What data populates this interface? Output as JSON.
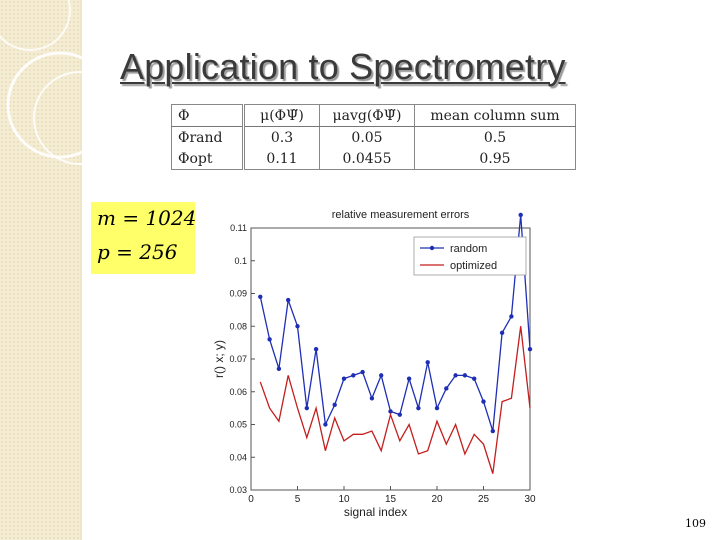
{
  "slide": {
    "title": "Application to Spectrometry",
    "page_number": "109"
  },
  "table": {
    "header": [
      "Φ",
      "μ(ΦΨ̃)",
      "μavg(ΦΨ̃)",
      "mean column sum"
    ],
    "rows": [
      [
        "Φrand",
        "0.3",
        "0.05",
        "0.5"
      ],
      [
        "Φopt",
        "0.11",
        "0.0455",
        "0.95"
      ]
    ]
  },
  "params": {
    "m": "m = 1024",
    "p": "p = 256"
  },
  "chart_data": {
    "type": "line",
    "title": "relative measurement errors",
    "xlabel": "signal index",
    "ylabel": "r() x; y)",
    "xlim": [
      0,
      30
    ],
    "ylim": [
      0.03,
      0.11
    ],
    "xticks": [
      "0",
      "5",
      "10",
      "15",
      "20",
      "25",
      "30"
    ],
    "yticks": [
      "0.03",
      "0.04",
      "0.05",
      "0.06",
      "0.07",
      "0.08",
      "0.09",
      "0.1",
      "0.11"
    ],
    "legend_position": "top-right",
    "x": [
      1,
      2,
      3,
      4,
      5,
      6,
      7,
      8,
      9,
      10,
      11,
      12,
      13,
      14,
      15,
      16,
      17,
      18,
      19,
      20,
      21,
      22,
      23,
      24,
      25,
      26,
      27,
      28,
      29,
      30
    ],
    "series": [
      {
        "name": "random",
        "color": "#1f2fb5",
        "marker": "dot",
        "values": [
          0.089,
          0.076,
          0.067,
          0.088,
          0.08,
          0.055,
          0.073,
          0.05,
          0.056,
          0.064,
          0.065,
          0.066,
          0.058,
          0.065,
          0.054,
          0.053,
          0.064,
          0.055,
          0.069,
          0.055,
          0.061,
          0.065,
          0.065,
          0.064,
          0.057,
          0.048,
          0.078,
          0.083,
          0.114,
          0.073
        ]
      },
      {
        "name": "optimized",
        "color": "#c41e1e",
        "marker": "none",
        "values": [
          0.063,
          0.055,
          0.051,
          0.065,
          0.055,
          0.046,
          0.055,
          0.042,
          0.052,
          0.045,
          0.047,
          0.047,
          0.048,
          0.042,
          0.053,
          0.045,
          0.05,
          0.041,
          0.042,
          0.051,
          0.044,
          0.05,
          0.041,
          0.047,
          0.044,
          0.035,
          0.057,
          0.058,
          0.08,
          0.055
        ]
      }
    ]
  }
}
